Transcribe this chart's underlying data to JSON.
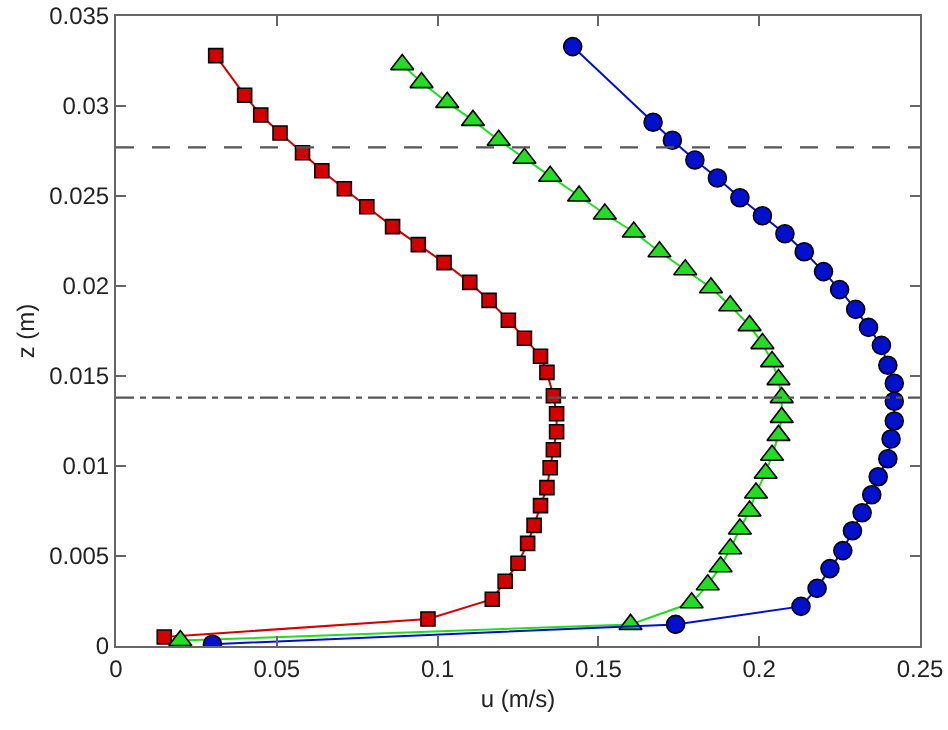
{
  "chart_data": {
    "type": "line",
    "xlabel": "u (m/s)",
    "ylabel": "z (m)",
    "xlim": [
      0,
      0.25
    ],
    "xticks": [
      0,
      0.05,
      0.1,
      0.15,
      0.2,
      0.25
    ],
    "ylim": [
      0,
      0.035
    ],
    "yticks": [
      0,
      0.005,
      0.01,
      0.015,
      0.02,
      0.025,
      0.03,
      0.035
    ],
    "line_style": "solid",
    "series": [
      {
        "color": "#d40000",
        "marker": "square",
        "x": [
          0.015,
          0.097,
          0.117,
          0.121,
          0.125,
          0.128,
          0.13,
          0.132,
          0.134,
          0.135,
          0.136,
          0.137,
          0.137,
          0.136,
          0.134,
          0.132,
          0.127,
          0.122,
          0.116,
          0.11,
          0.102,
          0.094,
          0.086,
          0.078,
          0.071,
          0.064,
          0.058,
          0.051,
          0.045,
          0.04,
          0.031
        ],
        "values": [
          0.0005,
          0.0015,
          0.0026,
          0.0036,
          0.0046,
          0.0057,
          0.0067,
          0.0078,
          0.0088,
          0.0099,
          0.0109,
          0.0119,
          0.0129,
          0.0139,
          0.0152,
          0.0161,
          0.0171,
          0.0181,
          0.0192,
          0.0202,
          0.0213,
          0.0223,
          0.0233,
          0.0244,
          0.0254,
          0.0264,
          0.0274,
          0.0285,
          0.0295,
          0.0306,
          0.0328
        ]
      },
      {
        "color": "#22dd22",
        "marker": "triangle",
        "x": [
          0.02,
          0.16,
          0.179,
          0.184,
          0.188,
          0.191,
          0.194,
          0.197,
          0.199,
          0.202,
          0.204,
          0.206,
          0.207,
          0.207,
          0.206,
          0.204,
          0.201,
          0.197,
          0.191,
          0.185,
          0.177,
          0.169,
          0.161,
          0.152,
          0.144,
          0.135,
          0.127,
          0.119,
          0.111,
          0.103,
          0.095,
          0.089
        ],
        "values": [
          0.0003,
          0.0012,
          0.0024,
          0.0034,
          0.0044,
          0.0054,
          0.0065,
          0.0075,
          0.0085,
          0.0096,
          0.0106,
          0.0117,
          0.0127,
          0.0138,
          0.0148,
          0.0158,
          0.0168,
          0.0178,
          0.0189,
          0.0199,
          0.0209,
          0.0219,
          0.023,
          0.024,
          0.025,
          0.0261,
          0.0271,
          0.0281,
          0.0292,
          0.0302,
          0.0313,
          0.0323
        ]
      },
      {
        "color": "#0010cc",
        "marker": "circle",
        "x": [
          0.03,
          0.174,
          0.213,
          0.218,
          0.222,
          0.226,
          0.229,
          0.232,
          0.235,
          0.237,
          0.24,
          0.241,
          0.242,
          0.242,
          0.242,
          0.24,
          0.238,
          0.234,
          0.23,
          0.225,
          0.22,
          0.214,
          0.208,
          0.201,
          0.194,
          0.187,
          0.18,
          0.173,
          0.167,
          0.142
        ],
        "values": [
          0.0001,
          0.0012,
          0.0022,
          0.0032,
          0.0043,
          0.0053,
          0.0064,
          0.0074,
          0.0084,
          0.0094,
          0.0104,
          0.0115,
          0.0125,
          0.0136,
          0.0146,
          0.0156,
          0.0167,
          0.0177,
          0.0187,
          0.0198,
          0.0208,
          0.0219,
          0.0229,
          0.0239,
          0.0249,
          0.026,
          0.027,
          0.0281,
          0.0291,
          0.0333
        ]
      }
    ],
    "ref_lines": [
      {
        "axis": "y",
        "value": 0.0277,
        "line_style": "dashed",
        "color": "#555555"
      },
      {
        "axis": "y",
        "value": 0.0138,
        "line_style": "dashdot",
        "color": "#555555"
      }
    ]
  }
}
